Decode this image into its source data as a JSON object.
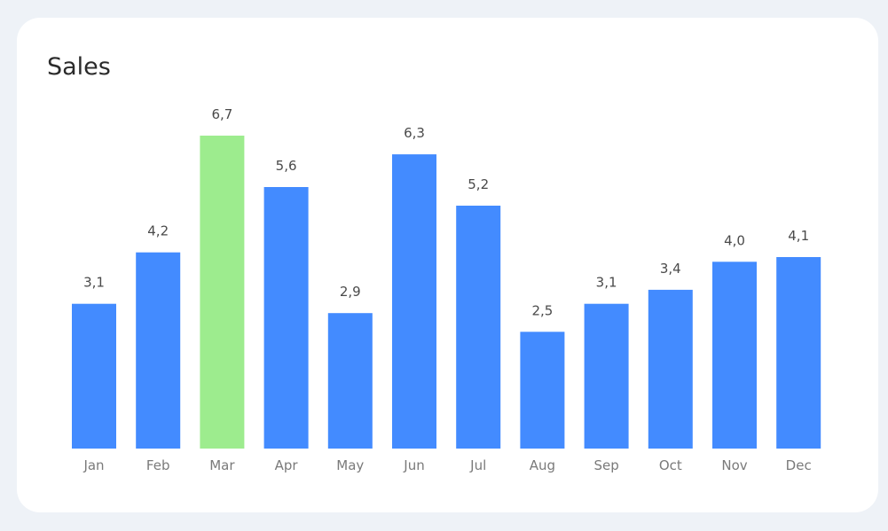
{
  "chart_data": {
    "type": "bar",
    "title": "Sales",
    "categories": [
      "Jan",
      "Feb",
      "Mar",
      "Apr",
      "May",
      "Jun",
      "Jul",
      "Aug",
      "Sep",
      "Oct",
      "Nov",
      "Dec"
    ],
    "values": [
      3.1,
      4.2,
      6.7,
      5.6,
      2.9,
      6.3,
      5.2,
      2.5,
      3.1,
      3.4,
      4.0,
      4.1
    ],
    "value_labels": [
      "3,1",
      "4,2",
      "6,7",
      "5,6",
      "2,9",
      "6,3",
      "5,2",
      "2,5",
      "3,1",
      "3,4",
      "4,0",
      "4,1"
    ],
    "highlight_index": 2,
    "colors": {
      "bar": "#438bff",
      "highlight": "#9dec8e"
    },
    "ylim": [
      0,
      6.7
    ],
    "grid": false,
    "legend": "none"
  }
}
